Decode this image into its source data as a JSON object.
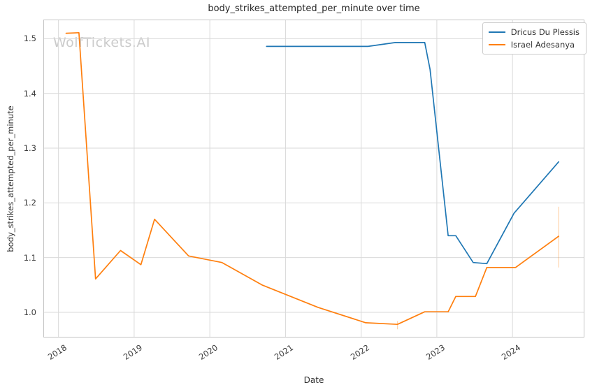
{
  "title": "body_strikes_attempted_per_minute over time",
  "watermark": "WolfTickets.AI",
  "chart_data": {
    "type": "line",
    "title": "body_strikes_attempted_per_minute over time",
    "xlabel": "Date",
    "ylabel": "body_strikes_attempted_per_minute",
    "xlim": [
      2017.8,
      2024.95
    ],
    "ylim": [
      0.954,
      1.535
    ],
    "grid": true,
    "legend_position": "upper right",
    "x_ticks": [
      2018,
      2019,
      2020,
      2021,
      2022,
      2023,
      2024
    ],
    "x_tick_labels": [
      "2018",
      "2019",
      "2020",
      "2021",
      "2022",
      "2023",
      "2024"
    ],
    "y_ticks": [
      1.0,
      1.1,
      1.2,
      1.3,
      1.4,
      1.5
    ],
    "y_tick_labels": [
      "1.0",
      "1.1",
      "1.2",
      "1.3",
      "1.4",
      "1.5"
    ],
    "series": [
      {
        "name": "Dricus Du Plessis",
        "color": "#1f77b4",
        "x": [
          2020.75,
          2022.09,
          2022.45,
          2022.84,
          2022.91,
          2023.15,
          2023.25,
          2023.48,
          2023.66,
          2024.02,
          2024.61
        ],
        "y": [
          1.486,
          1.486,
          1.493,
          1.493,
          1.444,
          1.14,
          1.14,
          1.091,
          1.089,
          1.181,
          1.275
        ],
        "error_bars": []
      },
      {
        "name": "Israel Adesanya",
        "color": "#ff7f0e",
        "x": [
          2018.1,
          2018.27,
          2018.49,
          2018.82,
          2019.09,
          2019.27,
          2019.72,
          2020.16,
          2020.69,
          2021.43,
          2022.06,
          2022.48,
          2022.84,
          2023.15,
          2023.25,
          2023.51,
          2023.66,
          2024.04,
          2024.61
        ],
        "y": [
          1.51,
          1.511,
          1.061,
          1.113,
          1.087,
          1.17,
          1.103,
          1.091,
          1.05,
          1.009,
          0.981,
          0.978,
          1.001,
          1.001,
          1.029,
          1.029,
          1.082,
          1.082,
          1.139
        ],
        "error_bars": [
          {
            "x": 2022.48,
            "y_low": 0.969,
            "y_high": 0.984
          },
          {
            "x": 2024.61,
            "y_low": 1.082,
            "y_high": 1.193
          }
        ]
      }
    ],
    "style": {
      "grid_color": "#d9d9d9",
      "spine_color": "#c4c4c4",
      "background": "#ffffff",
      "line_width": 1.7
    }
  }
}
